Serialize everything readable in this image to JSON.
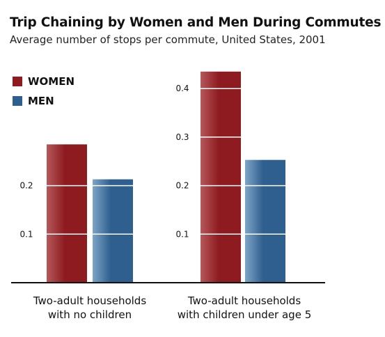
{
  "chart_data": {
    "type": "bar",
    "title": "Trip Chaining by Women and Men During Commutes",
    "subtitle": "Average number of stops per commute, United States, 2001",
    "categories": [
      [
        "Two-adult households",
        "with no children"
      ],
      [
        "Two-adult households",
        "with children under age 5"
      ]
    ],
    "series": [
      {
        "name": "WOMEN",
        "color": "#8e1b20",
        "values": [
          0.285,
          0.435
        ]
      },
      {
        "name": "MEN",
        "color": "#2e5f8e",
        "values": [
          0.213,
          0.253
        ]
      }
    ],
    "yticks": [
      0.1,
      0.2
    ],
    "yticks_panel2": [
      0.1,
      0.2,
      0.3,
      0.4
    ],
    "ylim": [
      0,
      0.45
    ],
    "legend": "top-left",
    "grid": true
  }
}
